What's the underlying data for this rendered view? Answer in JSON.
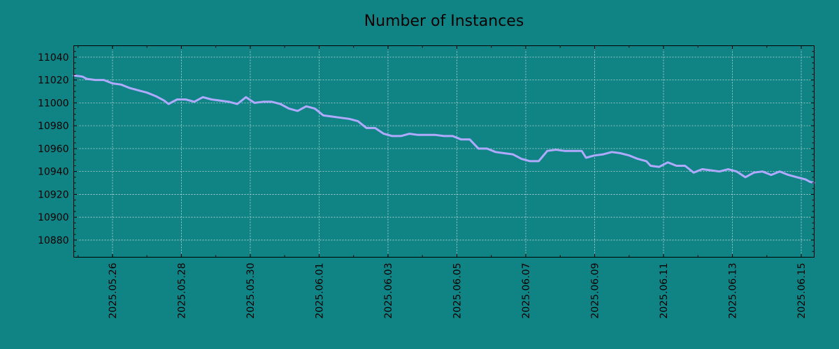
{
  "colors": {
    "background": "#108385",
    "line": "#b0aaff",
    "grid": "#d8e8e8",
    "text": "#000000"
  },
  "chart_data": {
    "type": "line",
    "title": "Number of Instances",
    "xlabel": "",
    "ylabel": "",
    "grid": true,
    "legend": "none",
    "x_axis_type": "date",
    "xlim": [
      "2025-05-24 21:00",
      "2025-06-15 09:00"
    ],
    "ylim": [
      10865,
      11050
    ],
    "x_ticks": [
      "2025.05.26",
      "2025.05.28",
      "2025.05.30",
      "2025.06.01",
      "2025.06.03",
      "2025.06.05",
      "2025.06.07",
      "2025.06.09",
      "2025.06.11",
      "2025.06.13",
      "2025.06.15"
    ],
    "y_ticks": [
      10880,
      10900,
      10920,
      10940,
      10960,
      10980,
      11000,
      11020,
      11040
    ],
    "series": [
      {
        "values": [
          [
            "2025-05-24 21:00",
            11024
          ],
          [
            "2025-05-25 03:00",
            11023
          ],
          [
            "2025-05-25 06:00",
            11021
          ],
          [
            "2025-05-25 12:00",
            11020
          ],
          [
            "2025-05-25 18:00",
            11020
          ],
          [
            "2025-05-26 00:00",
            11017
          ],
          [
            "2025-05-26 06:00",
            11016
          ],
          [
            "2025-05-26 12:00",
            11013
          ],
          [
            "2025-05-26 18:00",
            11011
          ],
          [
            "2025-05-27 00:00",
            11009
          ],
          [
            "2025-05-27 06:00",
            11006
          ],
          [
            "2025-05-27 12:00",
            11002
          ],
          [
            "2025-05-27 15:00",
            10999
          ],
          [
            "2025-05-27 21:00",
            11003
          ],
          [
            "2025-05-28 03:00",
            11003
          ],
          [
            "2025-05-28 09:00",
            11001
          ],
          [
            "2025-05-28 15:00",
            11005
          ],
          [
            "2025-05-28 21:00",
            11003
          ],
          [
            "2025-05-29 03:00",
            11002
          ],
          [
            "2025-05-29 09:00",
            11001
          ],
          [
            "2025-05-29 15:00",
            10999
          ],
          [
            "2025-05-29 21:00",
            11005
          ],
          [
            "2025-05-30 03:00",
            11000
          ],
          [
            "2025-05-30 09:00",
            11001
          ],
          [
            "2025-05-30 15:00",
            11001
          ],
          [
            "2025-05-30 21:00",
            10999
          ],
          [
            "2025-05-31 03:00",
            10995
          ],
          [
            "2025-05-31 09:00",
            10993
          ],
          [
            "2025-05-31 15:00",
            10997
          ],
          [
            "2025-05-31 21:00",
            10995
          ],
          [
            "2025-06-01 03:00",
            10989
          ],
          [
            "2025-06-01 09:00",
            10988
          ],
          [
            "2025-06-01 15:00",
            10987
          ],
          [
            "2025-06-01 21:00",
            10986
          ],
          [
            "2025-06-02 03:00",
            10984
          ],
          [
            "2025-06-02 09:00",
            10978
          ],
          [
            "2025-06-02 15:00",
            10978
          ],
          [
            "2025-06-02 21:00",
            10973
          ],
          [
            "2025-06-03 03:00",
            10971
          ],
          [
            "2025-06-03 09:00",
            10971
          ],
          [
            "2025-06-03 15:00",
            10973
          ],
          [
            "2025-06-03 21:00",
            10972
          ],
          [
            "2025-06-04 03:00",
            10972
          ],
          [
            "2025-06-04 09:00",
            10972
          ],
          [
            "2025-06-04 15:00",
            10971
          ],
          [
            "2025-06-04 21:00",
            10971
          ],
          [
            "2025-06-05 03:00",
            10968
          ],
          [
            "2025-06-05 09:00",
            10968
          ],
          [
            "2025-06-05 15:00",
            10960
          ],
          [
            "2025-06-05 21:00",
            10960
          ],
          [
            "2025-06-06 03:00",
            10957
          ],
          [
            "2025-06-06 09:00",
            10956
          ],
          [
            "2025-06-06 15:00",
            10955
          ],
          [
            "2025-06-06 21:00",
            10951
          ],
          [
            "2025-06-07 03:00",
            10949
          ],
          [
            "2025-06-07 09:00",
            10949
          ],
          [
            "2025-06-07 15:00",
            10958
          ],
          [
            "2025-06-07 21:00",
            10959
          ],
          [
            "2025-06-08 03:00",
            10958
          ],
          [
            "2025-06-08 09:00",
            10958
          ],
          [
            "2025-06-08 15:00",
            10958
          ],
          [
            "2025-06-08 18:00",
            10952
          ],
          [
            "2025-06-09 00:00",
            10954
          ],
          [
            "2025-06-09 06:00",
            10955
          ],
          [
            "2025-06-09 12:00",
            10957
          ],
          [
            "2025-06-09 18:00",
            10956
          ],
          [
            "2025-06-10 00:00",
            10954
          ],
          [
            "2025-06-10 06:00",
            10951
          ],
          [
            "2025-06-10 12:00",
            10949
          ],
          [
            "2025-06-10 15:00",
            10945
          ],
          [
            "2025-06-10 21:00",
            10944
          ],
          [
            "2025-06-11 03:00",
            10948
          ],
          [
            "2025-06-11 09:00",
            10945
          ],
          [
            "2025-06-11 15:00",
            10945
          ],
          [
            "2025-06-11 21:00",
            10939
          ],
          [
            "2025-06-12 03:00",
            10942
          ],
          [
            "2025-06-12 09:00",
            10941
          ],
          [
            "2025-06-12 15:00",
            10940
          ],
          [
            "2025-06-12 21:00",
            10942
          ],
          [
            "2025-06-13 03:00",
            10940
          ],
          [
            "2025-06-13 09:00",
            10935
          ],
          [
            "2025-06-13 15:00",
            10939
          ],
          [
            "2025-06-13 21:00",
            10940
          ],
          [
            "2025-06-14 03:00",
            10937
          ],
          [
            "2025-06-14 09:00",
            10940
          ],
          [
            "2025-06-14 15:00",
            10937
          ],
          [
            "2025-06-14 21:00",
            10935
          ],
          [
            "2025-06-15 03:00",
            10933
          ],
          [
            "2025-06-15 06:00",
            10931
          ],
          [
            "2025-06-15 09:00",
            10930
          ]
        ]
      }
    ]
  }
}
